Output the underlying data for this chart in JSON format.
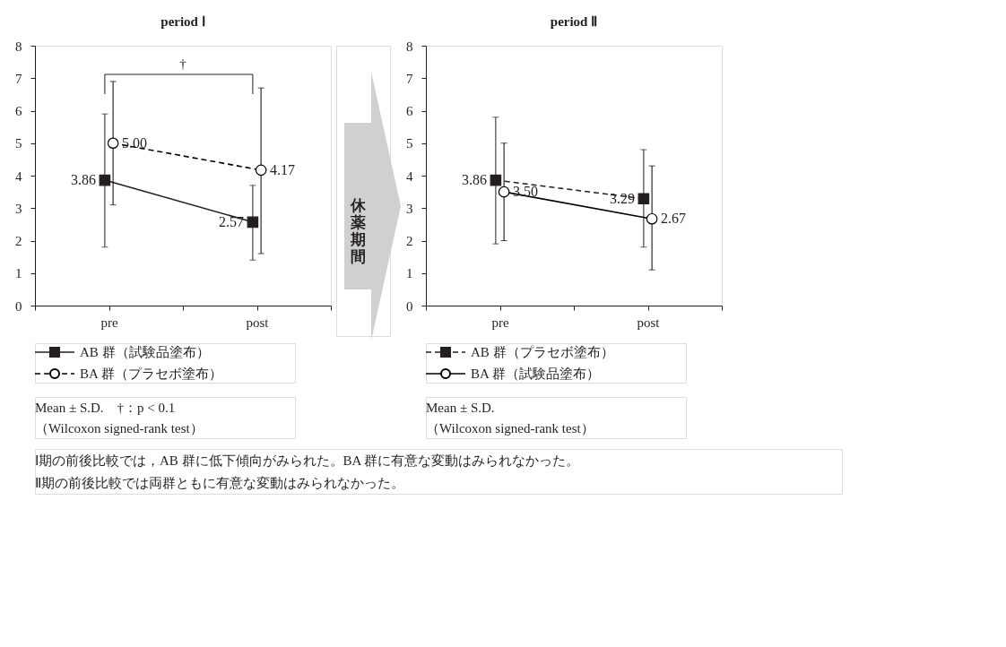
{
  "chart_data": [
    {
      "type": "line",
      "title": "period Ⅰ",
      "categories": [
        "pre",
        "post"
      ],
      "ylim": [
        0,
        8
      ],
      "yticks": [
        0,
        1,
        2,
        3,
        4,
        5,
        6,
        7,
        8
      ],
      "grid": false,
      "legend": "bottom",
      "series": [
        {
          "name": "AB 群（試験品塗布）",
          "color": "#231f20",
          "values": [
            3.86,
            2.57
          ],
          "value_labels": [
            "3.86",
            "2.57"
          ],
          "errors": [
            [
              1.8,
              5.9
            ],
            [
              1.4,
              3.7
            ]
          ],
          "marker": "square",
          "line_style": "solid"
        },
        {
          "name": "BA 群（プラセボ塗布）",
          "color": "#000000",
          "values": [
            5.0,
            4.17
          ],
          "value_labels": [
            "5.00",
            "4.17"
          ],
          "errors": [
            [
              3.1,
              6.9
            ],
            [
              1.6,
              6.7
            ]
          ],
          "marker": "circle",
          "line_style": "dashed"
        }
      ],
      "annotations": [
        "†",
        "Mean ± S.D.　†：p < 0.1",
        "（Wilcoxon signed-rank test）",
        "休薬期間",
        "Ⅰ期の前後比較では，AB 群に低下傾向がみられた。BA 群に有意な変動はみられなかった。",
        "Ⅱ期の前後比較では両群ともに有意な変動はみられなかった。"
      ]
    },
    {
      "type": "line",
      "title": "period Ⅱ",
      "categories": [
        "pre",
        "post"
      ],
      "ylim": [
        0,
        8
      ],
      "yticks": [
        0,
        1,
        2,
        3,
        4,
        5,
        6,
        7,
        8
      ],
      "grid": false,
      "legend": "bottom",
      "series": [
        {
          "name": "AB 群（プラセボ塗布）",
          "color": "#231f20",
          "values": [
            3.86,
            3.29
          ],
          "value_labels": [
            "3.86",
            "3.29"
          ],
          "errors": [
            [
              1.9,
              5.8
            ],
            [
              1.8,
              4.8
            ]
          ],
          "marker": "square",
          "line_style": "dashed"
        },
        {
          "name": "BA 群（試験品塗布）",
          "color": "#000000",
          "values": [
            3.5,
            2.67
          ],
          "value_labels": [
            "3.50",
            "2.67"
          ],
          "errors": [
            [
              2.0,
              5.0
            ],
            [
              1.1,
              4.3
            ]
          ],
          "marker": "circle",
          "line_style": "solid"
        }
      ],
      "annotations": [
        "Mean ± S.D.",
        "（Wilcoxon signed-rank test）"
      ]
    }
  ]
}
